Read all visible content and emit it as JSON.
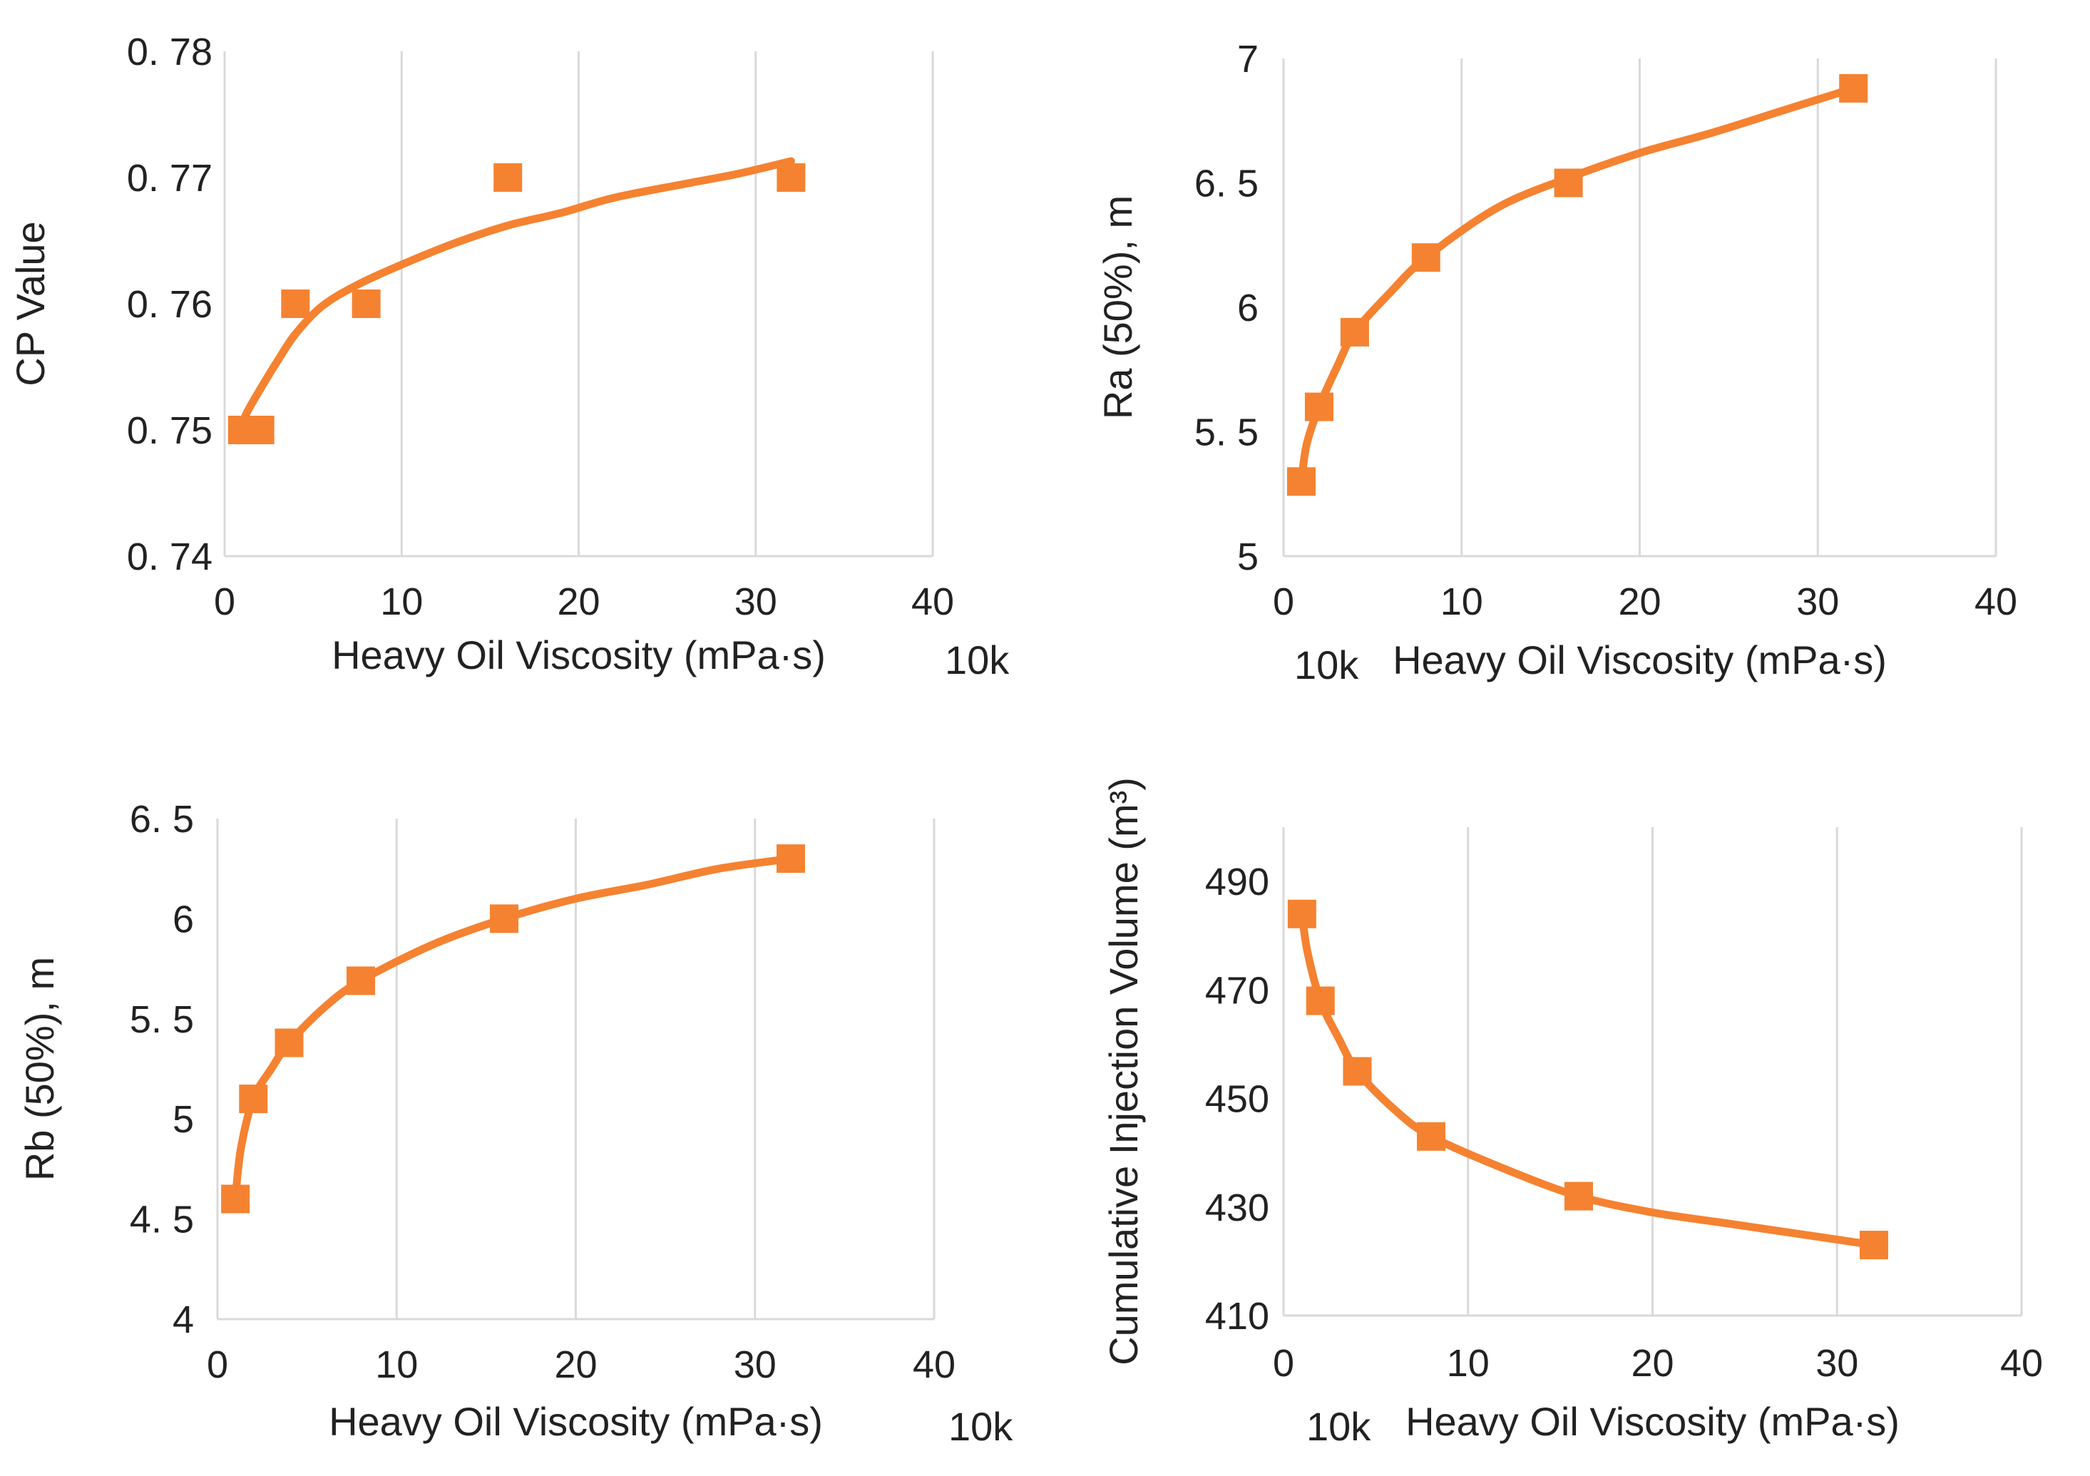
{
  "colors": {
    "series": "#f58231",
    "grid": "#d9d9d9",
    "text": "#222222"
  },
  "chart_data": [
    {
      "type": "line",
      "title": "",
      "xlabel": "Heavy Oil Viscosity (mPa·s)",
      "xunit": "10k",
      "ylabel": "CP Value",
      "xlim": [
        0,
        40
      ],
      "ylim": [
        0.74,
        0.78
      ],
      "xticks": [
        0,
        10,
        20,
        30,
        40
      ],
      "xtick_labels": [
        "0",
        "10",
        "20",
        "30",
        "40"
      ],
      "yticks": [
        0.74,
        0.75,
        0.76,
        0.77,
        0.78
      ],
      "ytick_labels": [
        "0. 74",
        "0. 75",
        "0. 76",
        "0. 77",
        "0. 78"
      ],
      "grid": "vertical",
      "legend": "none",
      "series": [
        {
          "marker": "square",
          "x": [
            1,
            2,
            4,
            8,
            16,
            32
          ],
          "y": [
            0.75,
            0.75,
            0.76,
            0.76,
            0.77,
            0.77
          ],
          "trend_x": [
            1,
            1.3,
            2,
            3,
            4,
            5.5,
            7.5,
            10,
            13,
            16,
            19,
            22,
            26,
            29,
            32
          ],
          "trend_y": [
            0.7505,
            0.7515,
            0.7532,
            0.7555,
            0.7576,
            0.7598,
            0.7615,
            0.7631,
            0.7648,
            0.7662,
            0.7672,
            0.7684,
            0.7695,
            0.7703,
            0.7713
          ]
        }
      ]
    },
    {
      "type": "line",
      "title": "",
      "xlabel": "Heavy Oil Viscosity (mPa·s)",
      "xunit": "10k",
      "ylabel": "Ra (50%), m",
      "xlim": [
        0,
        40
      ],
      "ylim": [
        5,
        7
      ],
      "xticks": [
        0,
        10,
        20,
        30,
        40
      ],
      "xtick_labels": [
        "0",
        "10",
        "20",
        "30",
        "40"
      ],
      "yticks": [
        5,
        5.5,
        6,
        6.5,
        7
      ],
      "ytick_labels": [
        "5",
        "5. 5",
        "6",
        "6. 5",
        "7"
      ],
      "grid": "vertical",
      "legend": "none",
      "series": [
        {
          "marker": "square",
          "x": [
            1,
            2,
            4,
            8,
            16,
            32
          ],
          "y": [
            5.3,
            5.6,
            5.9,
            6.2,
            6.5,
            6.88
          ],
          "trend_x": [
            1,
            1.3,
            2,
            3,
            4,
            6,
            8,
            12,
            16,
            20,
            24,
            28,
            32
          ],
          "trend_y": [
            5.3,
            5.45,
            5.6,
            5.76,
            5.9,
            6.06,
            6.2,
            6.4,
            6.52,
            6.62,
            6.7,
            6.79,
            6.88
          ]
        }
      ]
    },
    {
      "type": "line",
      "title": "",
      "xlabel": "Heavy Oil Viscosity (mPa·s)",
      "xunit": "10k",
      "ylabel": "Rb (50%), m",
      "xlim": [
        0,
        40
      ],
      "ylim": [
        4,
        6.5
      ],
      "xticks": [
        0,
        10,
        20,
        30,
        40
      ],
      "xtick_labels": [
        "0",
        "10",
        "20",
        "30",
        "40"
      ],
      "yticks": [
        4,
        4.5,
        5,
        5.5,
        6,
        6.5
      ],
      "ytick_labels": [
        "4",
        "4. 5",
        "5",
        "5. 5",
        "6",
        "6. 5"
      ],
      "grid": "vertical",
      "legend": "none",
      "series": [
        {
          "marker": "square",
          "x": [
            1,
            2,
            4,
            8,
            16,
            32
          ],
          "y": [
            4.6,
            5.1,
            5.38,
            5.69,
            6.0,
            6.3
          ],
          "trend_x": [
            1,
            1.3,
            2,
            3,
            4,
            6,
            8,
            12,
            16,
            20,
            24,
            28,
            32
          ],
          "trend_y": [
            4.6,
            4.85,
            5.1,
            5.25,
            5.38,
            5.56,
            5.69,
            5.87,
            6.0,
            6.1,
            6.17,
            6.25,
            6.3
          ]
        }
      ]
    },
    {
      "type": "line",
      "title": "",
      "xlabel": "Heavy Oil Viscosity (mPa·s)",
      "xunit": "10k",
      "ylabel": "Cumulative  Injection  Volume (m³)",
      "xlim": [
        0,
        40
      ],
      "ylim": [
        410,
        500
      ],
      "xticks": [
        0,
        10,
        20,
        30,
        40
      ],
      "xtick_labels": [
        "0",
        "10",
        "20",
        "30",
        "40"
      ],
      "yticks": [
        410,
        430,
        450,
        470,
        490
      ],
      "ytick_labels": [
        "410",
        "430",
        "450",
        "470",
        "490"
      ],
      "grid": "vertical",
      "legend": "none",
      "series": [
        {
          "marker": "square",
          "x": [
            1,
            2,
            4,
            8,
            16,
            32
          ],
          "y": [
            484,
            468,
            455,
            443,
            432,
            423
          ],
          "trend_x": [
            1,
            1.3,
            2,
            3,
            4,
            6,
            8,
            12,
            16,
            20,
            24,
            28,
            32
          ],
          "trend_y": [
            484,
            477,
            468,
            461,
            455,
            448,
            443,
            437,
            432,
            429,
            427,
            425,
            423
          ]
        }
      ]
    }
  ]
}
